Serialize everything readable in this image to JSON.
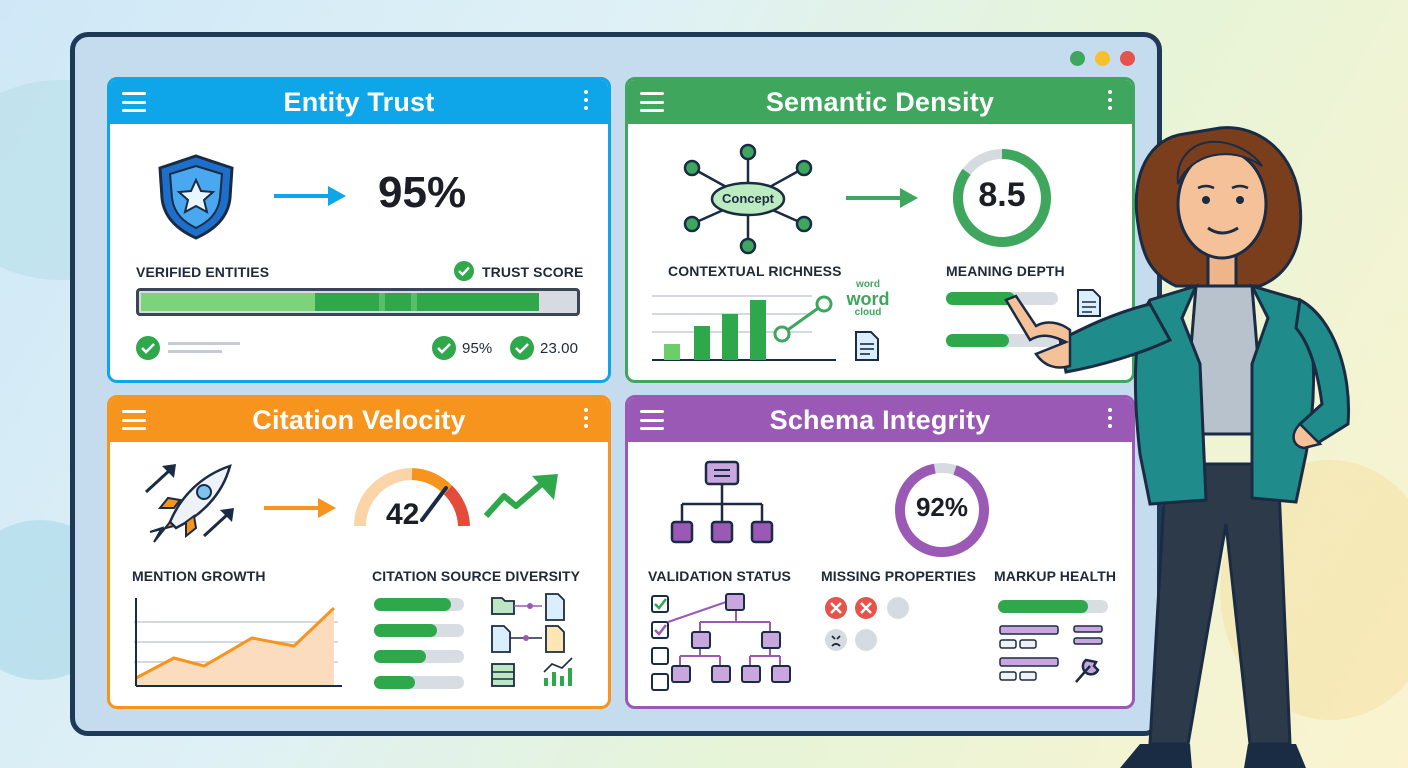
{
  "panels": {
    "entity_trust": {
      "title": "Entity Trust",
      "score": "95%",
      "label_left": "VERIFIED ENTITIES",
      "label_right": "TRUST SCORE",
      "stat_1": "95%",
      "stat_2": "23.00",
      "color": "#0ea5e9"
    },
    "semantic_density": {
      "title": "Semantic Density",
      "node_label": "Concept",
      "score": "8.5",
      "label_left": "CONTEXTUAL RICHNESS",
      "label_right": "MEANING DEPTH",
      "word_cloud": [
        "word",
        "word",
        "cloud"
      ],
      "color": "#3fa75d"
    },
    "citation_velocity": {
      "title": "Citation Velocity",
      "gauge_value": "42",
      "label_left": "MENTION GROWTH",
      "label_right": "CITATION SOURCE DIVERSITY",
      "color": "#f7941d"
    },
    "schema_integrity": {
      "title": "Schema Integrity",
      "score": "92%",
      "label_1": "VALIDATION STATUS",
      "label_2": "MISSING PROPERTIES",
      "label_3": "MARKUP HEALTH",
      "color": "#9b59b6"
    }
  },
  "icons": [
    "menu-icon",
    "kebab-icon",
    "shield-star-icon",
    "arrow-right-icon",
    "check-icon",
    "concept-network-icon",
    "document-icon",
    "rocket-icon",
    "gauge-icon",
    "trend-up-icon",
    "folder-icon",
    "hierarchy-icon",
    "wrench-icon",
    "error-icon",
    "checkbox-icon"
  ],
  "window_dots": [
    "#3fa75d",
    "#f5c02c",
    "#e5534b"
  ]
}
